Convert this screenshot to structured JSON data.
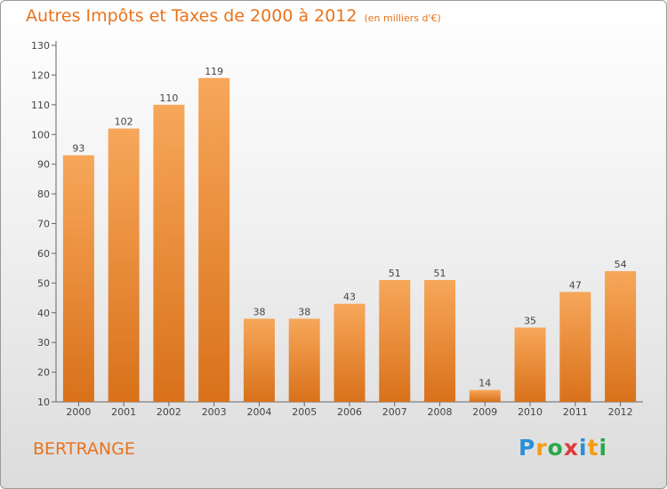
{
  "title": "Autres Impôts et Taxes de 2000 à 2012",
  "unit_note": "(en milliers d'€)",
  "commune": "BERTRANGE",
  "logo": {
    "letters": [
      "P",
      "r",
      "o",
      "x",
      "i",
      "t",
      "i"
    ],
    "colors": [
      "#2a8fd6",
      "#f39c12",
      "#2aa84a",
      "#e03a3a",
      "#2a8fd6",
      "#f39c12",
      "#2aa84a"
    ]
  },
  "colors": {
    "title": "#e8731c",
    "bar_top": "#f7a75a",
    "bar_bottom": "#d9711a"
  },
  "chart_data": {
    "type": "bar",
    "title": "Autres Impôts et Taxes de 2000 à 2012",
    "subtitle": "(en milliers d'€)",
    "xlabel": "",
    "ylabel": "",
    "categories": [
      "2000",
      "2001",
      "2002",
      "2003",
      "2004",
      "2005",
      "2006",
      "2007",
      "2008",
      "2009",
      "2010",
      "2011",
      "2012"
    ],
    "values": [
      93,
      102,
      110,
      119,
      38,
      38,
      43,
      51,
      51,
      14,
      35,
      47,
      54
    ],
    "ylim": [
      10,
      130
    ],
    "yticks": [
      10,
      20,
      30,
      40,
      50,
      60,
      70,
      80,
      90,
      100,
      110,
      120,
      130
    ],
    "grid": false,
    "legend": "none"
  }
}
